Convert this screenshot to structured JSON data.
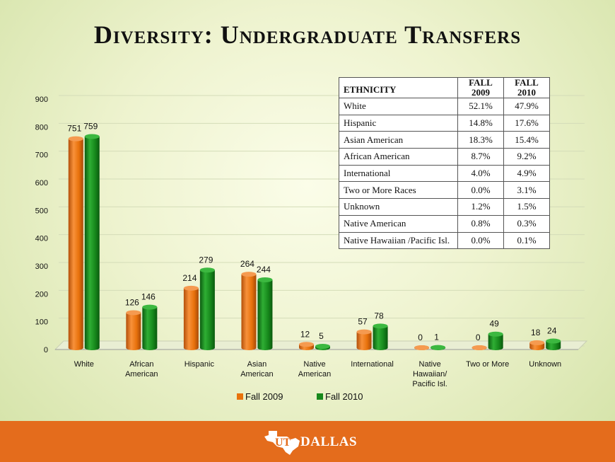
{
  "title": "Diversity: Undergraduate Transfers",
  "chart_data": {
    "type": "bar",
    "categories": [
      "White",
      "African\nAmerican",
      "Hispanic",
      "Asian\nAmerican",
      "Native\nAmerican",
      "International",
      "Native\nHawaiian/\nPacific Isl.",
      "Two or More",
      "Unknown"
    ],
    "series": [
      {
        "name": "Fall 2009",
        "color": "#e8720c",
        "values": [
          751,
          126,
          214,
          264,
          12,
          57,
          0,
          0,
          18
        ]
      },
      {
        "name": "Fall 2010",
        "color": "#17891c",
        "values": [
          759,
          146,
          279,
          244,
          5,
          78,
          1,
          49,
          24
        ]
      }
    ],
    "yticks": [
      0,
      100,
      200,
      300,
      400,
      500,
      600,
      700,
      800,
      900
    ],
    "ylim": [
      0,
      900
    ],
    "legend_position": "bottom"
  },
  "table": {
    "headers": [
      "ETHNICITY",
      "FALL\n2009",
      "FALL\n2010"
    ],
    "rows": [
      [
        "White",
        "52.1%",
        "47.9%"
      ],
      [
        "Hispanic",
        "14.8%",
        "17.6%"
      ],
      [
        "Asian American",
        "18.3%",
        "15.4%"
      ],
      [
        "African American",
        "8.7%",
        "9.2%"
      ],
      [
        "International",
        "4.0%",
        "4.9%"
      ],
      [
        "Two or More Races",
        "0.0%",
        "3.1%"
      ],
      [
        "Unknown",
        "1.2%",
        "1.5%"
      ],
      [
        "Native American",
        "0.8%",
        "0.3%"
      ],
      [
        "Native Hawaiian /Pacific Isl.",
        "0.0%",
        "0.1%"
      ]
    ]
  },
  "footer": {
    "logo_text": "DALLAS",
    "logo_mark": "UT"
  }
}
